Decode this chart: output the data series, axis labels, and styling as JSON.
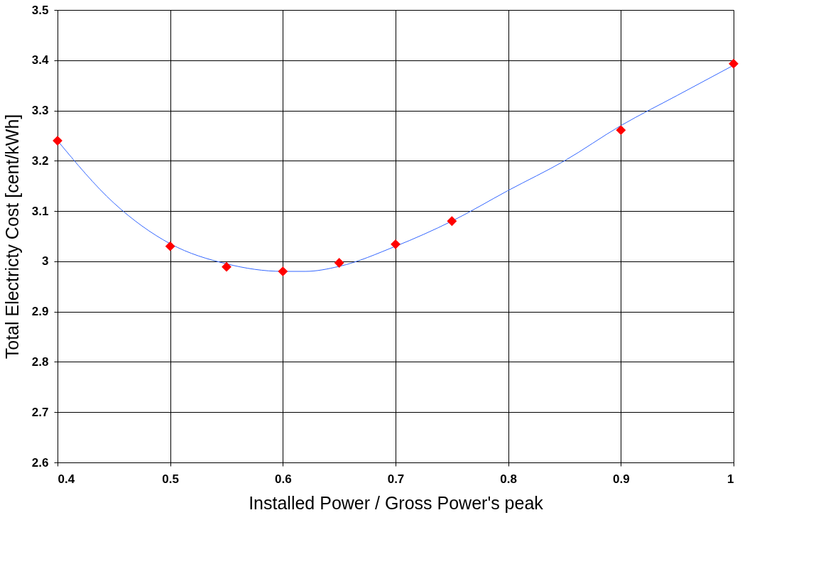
{
  "chart_data": {
    "type": "scatter",
    "xlabel": "Installed Power / Gross Power's peak",
    "ylabel": "Total Electricty Cost [cent/kWh]",
    "xlim": [
      0.4,
      1
    ],
    "xticks": [
      0.4,
      0.5,
      0.6,
      0.7,
      0.8,
      0.9,
      1
    ],
    "ylim": [
      2.6,
      3.5
    ],
    "yticks": [
      2.6,
      2.7,
      2.8,
      2.9,
      3,
      3.1,
      3.2,
      3.3,
      3.4,
      3.5
    ],
    "grid": true,
    "series": [
      {
        "type": "line",
        "color": "#3366ff",
        "marker": "none",
        "x": [
          0.4,
          0.45,
          0.5,
          0.55,
          0.6,
          0.62,
          0.65,
          0.7,
          0.75,
          0.8,
          0.85,
          0.9,
          0.95,
          1.0
        ],
        "values": [
          3.24,
          3.116,
          3.035,
          2.995,
          2.98,
          2.98,
          2.99,
          3.03,
          3.08,
          3.141,
          3.2,
          3.27,
          3.33,
          3.39
        ]
      },
      {
        "color": "#ff0000",
        "marker": "diamond",
        "x": [
          0.4,
          0.5,
          0.55,
          0.6,
          0.65,
          0.7,
          0.75,
          0.9,
          1.0
        ],
        "values": [
          3.24,
          3.03,
          2.989,
          2.98,
          2.997,
          3.034,
          3.08,
          3.261,
          3.393
        ]
      }
    ]
  }
}
